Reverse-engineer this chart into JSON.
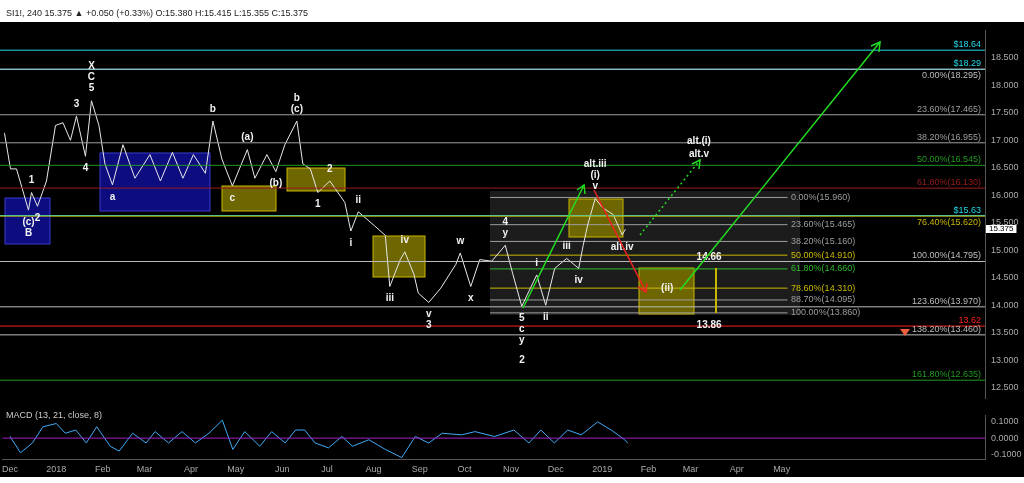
{
  "chart_data": [
    {
      "type": "line",
      "title": "SI1!, 240 15.375 ▲ +0.050 (+0.33%) O:15.380 H:15.415 L:15.355 C:15.375",
      "xlim": [
        "2017-11-26",
        "2019-09-14"
      ],
      "ylim": [
        12.3,
        19.0
      ],
      "yticks": [
        {
          "value": 12.5,
          "label": "12.500"
        },
        {
          "value": 13,
          "label": "13.000"
        },
        {
          "value": 13.5,
          "label": "13.500"
        },
        {
          "value": 14,
          "label": "14.000"
        },
        {
          "value": 14.5,
          "label": "14.500"
        },
        {
          "value": 15,
          "label": "15.000"
        },
        {
          "value": 15.5,
          "label": "15.500"
        },
        {
          "value": 16,
          "label": "16.000"
        },
        {
          "value": 16.5,
          "label": "16.500"
        },
        {
          "value": 17,
          "label": "17.000"
        },
        {
          "value": 17.5,
          "label": "17.500"
        },
        {
          "value": 18,
          "label": "18.000"
        },
        {
          "value": 18.5,
          "label": "18.500"
        }
      ],
      "tick_labels": "y",
      "grid": false,
      "legend": false,
      "marker": "none",
      "line_style": "solid",
      "series": [
        {
          "color": "#e8e8e8",
          "x": [
            "2017-11-29",
            "2017-12-03",
            "2017-12-07",
            "2017-12-15",
            "2017-12-17",
            "2017-12-21",
            "2017-12-27",
            "2018-01-02",
            "2018-01-07",
            "2018-01-12",
            "2018-01-16",
            "2018-01-22",
            "2018-01-26",
            "2018-01-31",
            "2018-02-04",
            "2018-02-09",
            "2018-02-16",
            "2018-02-24",
            "2018-03-06",
            "2018-03-13",
            "2018-03-21",
            "2018-03-28",
            "2018-04-04",
            "2018-04-12",
            "2018-04-17",
            "2018-04-23",
            "2018-04-30",
            "2018-05-10",
            "2018-05-15",
            "2018-05-23",
            "2018-05-29",
            "2018-06-04",
            "2018-06-12",
            "2018-06-16",
            "2018-06-21",
            "2018-06-26",
            "2018-07-04",
            "2018-07-14",
            "2018-07-18",
            "2018-07-23",
            "2018-08-03",
            "2018-08-10",
            "2018-08-13",
            "2018-08-20",
            "2018-08-23",
            "2018-08-29",
            "2018-09-01",
            "2018-09-08",
            "2018-09-16",
            "2018-09-26",
            "2018-09-29",
            "2018-10-06",
            "2018-10-12",
            "2018-10-20",
            "2018-10-29",
            "2018-11-03",
            "2018-11-09",
            "2018-11-19",
            "2018-11-25",
            "2018-12-01",
            "2018-12-09",
            "2018-12-17",
            "2018-12-20",
            "2018-12-23",
            "2018-12-28",
            "2019-01-02",
            "2019-01-09",
            "2019-01-15",
            "2019-01-17"
          ],
          "values": [
            17.13,
            16.48,
            16.48,
            15.73,
            16.05,
            15.8,
            16.26,
            17.27,
            17.32,
            17.0,
            17.44,
            16.71,
            17.72,
            17.27,
            16.57,
            16.19,
            16.92,
            16.31,
            16.74,
            16.26,
            16.78,
            16.31,
            16.74,
            16.4,
            17.35,
            16.66,
            16.17,
            16.83,
            16.31,
            16.74,
            16.43,
            16.92,
            17.35,
            16.57,
            16.48,
            16.05,
            16.26,
            15.87,
            15.35,
            15.7,
            15.44,
            15.27,
            14.34,
            14.83,
            14.97,
            14.57,
            14.22,
            14.05,
            14.31,
            14.74,
            14.95,
            14.34,
            14.83,
            14.8,
            15.09,
            14.57,
            13.98,
            14.55,
            14.0,
            14.67,
            14.85,
            14.67,
            15.09,
            15.46,
            15.94,
            15.77,
            15.65,
            15.28,
            15.375
          ]
        },
        {
          "name": "0.00%(15.960)",
          "color": "#9e9e9e",
          "x": [
            "2018-10-19",
            "2019-05-05"
          ],
          "values": [
            15.96,
            15.96
          ]
        },
        {
          "name": "23.60%(15.465)",
          "color": "#9e9e9e",
          "x": [
            "2018-10-19",
            "2019-05-05"
          ],
          "values": [
            15.465,
            15.465
          ]
        },
        {
          "name": "38.20%(15.160)",
          "color": "#9e9e9e",
          "x": [
            "2018-10-19",
            "2019-05-05"
          ],
          "values": [
            15.16,
            15.16
          ]
        },
        {
          "name": "50.00%(14.910)",
          "color": "#c9b800",
          "x": [
            "2018-10-19",
            "2019-05-05"
          ],
          "values": [
            14.91,
            14.91
          ]
        },
        {
          "name": "61.80%(14.660)",
          "color": "#2fb82f",
          "x": [
            "2018-10-19",
            "2019-05-05"
          ],
          "values": [
            14.66,
            14.66
          ]
        },
        {
          "name": "78.60%(14.310)",
          "color": "#c9b800",
          "x": [
            "2018-10-19",
            "2019-05-05"
          ],
          "values": [
            14.31,
            14.31
          ]
        },
        {
          "name": "88.70%(14.095)",
          "color": "#9e9e9e",
          "x": [
            "2018-10-19",
            "2019-05-05"
          ],
          "values": [
            14.095,
            14.095
          ]
        },
        {
          "name": "100.00%(13.860)",
          "color": "#9e9e9e",
          "x": [
            "2018-10-19",
            "2019-05-05"
          ],
          "values": [
            13.86,
            13.86
          ]
        }
      ],
      "ref_lines": [
        {
          "axis": "y",
          "value": 18.64,
          "label": "$18.64",
          "color": "#20d8e8"
        },
        {
          "axis": "y",
          "value": 18.29,
          "label": "$18.29",
          "color": "#20d8e8"
        },
        {
          "axis": "y",
          "value": 18.295,
          "label": "0.00%(18.295)",
          "color": "#bdbdbd"
        },
        {
          "axis": "y",
          "value": 17.465,
          "label": "23.60%(17.465)",
          "color": "#9e9e9e"
        },
        {
          "axis": "y",
          "value": 16.955,
          "label": "38.20%(16.955)",
          "color": "#9e9e9e"
        },
        {
          "axis": "y",
          "value": 16.545,
          "label": "50.00%(16.545)",
          "color": "#1f9a1f"
        },
        {
          "axis": "y",
          "value": 16.13,
          "label": "61.80%(16.130)",
          "color": "#9a1c1c"
        },
        {
          "axis": "y",
          "value": 15.63,
          "label": "$15.63",
          "color": "#20d8e8"
        },
        {
          "axis": "y",
          "value": 15.62,
          "label": "76.40%(15.620)",
          "color": "#c9b800"
        },
        {
          "axis": "y",
          "value": 14.795,
          "label": "100.00%(14.795)",
          "color": "#bdbdbd"
        },
        {
          "axis": "y",
          "value": 13.97,
          "label": "123.60%(13.970)",
          "color": "#bdbdbd"
        },
        {
          "axis": "y",
          "value": 13.62,
          "label": "13.62",
          "color": "#ff2020"
        },
        {
          "axis": "y",
          "value": 13.46,
          "label": "138.20%(13.460)",
          "color": "#bdbdbd"
        },
        {
          "axis": "y",
          "value": 12.635,
          "label": "161.80%(12.635)",
          "color": "#1f9a1f"
        }
      ],
      "annotations": [
        {
          "text": "5",
          "x": "2018-01-26",
          "y": 17.72
        },
        {
          "text": "C",
          "x": "2018-01-26",
          "y": 17.72
        },
        {
          "text": "X",
          "x": "2018-01-26",
          "y": 17.72
        },
        {
          "text": "3",
          "x": "2018-01-16",
          "y": 17.44
        },
        {
          "text": "4",
          "x": "2018-01-22",
          "y": 16.71
        },
        {
          "text": "1",
          "x": "2017-12-17",
          "y": 16.05
        },
        {
          "text": "2",
          "x": "2017-12-21",
          "y": 15.8
        },
        {
          "text": "(c)",
          "x": "2017-12-15",
          "y": 15.73
        },
        {
          "text": "B",
          "x": "2017-12-15",
          "y": 15.73
        },
        {
          "text": "a",
          "x": "2018-02-09",
          "y": 16.19
        },
        {
          "text": "b",
          "x": "2018-04-17",
          "y": 17.35
        },
        {
          "text": "(a)",
          "x": "2018-05-10",
          "y": 16.83
        },
        {
          "text": "c",
          "x": "2018-04-30",
          "y": 16.17
        },
        {
          "text": "(b)",
          "x": "2018-05-29",
          "y": 16.43
        },
        {
          "text": "(c)",
          "x": "2018-06-12",
          "y": 17.35
        },
        {
          "text": "b",
          "x": "2018-06-12",
          "y": 17.35
        },
        {
          "text": "2",
          "x": "2018-07-04",
          "y": 16.26
        },
        {
          "text": "1",
          "x": "2018-06-26",
          "y": 16.05
        },
        {
          "text": "ii",
          "x": "2018-07-23",
          "y": 15.7
        },
        {
          "text": "i",
          "x": "2018-07-18",
          "y": 15.35
        },
        {
          "text": "iii",
          "x": "2018-08-13",
          "y": 14.34
        },
        {
          "text": "iv",
          "x": "2018-08-23",
          "y": 14.97
        },
        {
          "text": "v",
          "x": "2018-09-08",
          "y": 14.05
        },
        {
          "text": "3",
          "x": "2018-09-08",
          "y": 14.05
        },
        {
          "text": "w",
          "x": "2018-09-29",
          "y": 14.95
        },
        {
          "text": "x",
          "x": "2018-10-06",
          "y": 14.34
        },
        {
          "text": "y",
          "x": "2018-10-29",
          "y": 15.09
        },
        {
          "text": "4",
          "x": "2018-10-29",
          "y": 15.09
        },
        {
          "text": "5",
          "x": "2018-11-09",
          "y": 13.98
        },
        {
          "text": "c",
          "x": "2018-11-09",
          "y": 13.98
        },
        {
          "text": "y",
          "x": "2018-11-09",
          "y": 13.98
        },
        {
          "text": "i",
          "x": "2018-11-19",
          "y": 14.55
        },
        {
          "text": "ii",
          "x": "2018-11-25",
          "y": 14.0
        },
        {
          "text": "iii",
          "x": "2018-12-09",
          "y": 14.85
        },
        {
          "text": "iv",
          "x": "2018-12-17",
          "y": 14.67
        },
        {
          "text": "v",
          "x": "2018-12-28",
          "y": 15.94
        },
        {
          "text": "(i)",
          "x": "2018-12-28",
          "y": 15.94
        },
        {
          "text": "alt.iii",
          "x": "2018-12-28",
          "y": 15.94
        },
        {
          "text": "alt.iv",
          "x": "2019-01-15",
          "y": 15.28
        },
        {
          "text": "14.66",
          "x": "2019-03-14",
          "y": 14.66
        },
        {
          "text": "13.86",
          "x": "2019-03-14",
          "y": 13.86
        },
        {
          "text": "(ii)",
          "x": "2019-02-14",
          "y": 14.095
        },
        "alt.(i)",
        "alt.v",
        "15.375",
        "2"
      ]
    },
    {
      "type": "line",
      "title": "MACD (13, 21, close, 8)",
      "xlim": [
        "2017-11-26",
        "2019-09-14"
      ],
      "xticks": [
        {
          "value": "2017-12-01",
          "label": "Dec"
        },
        {
          "value": "2018-01-01",
          "label": "2018"
        },
        {
          "value": "2018-02-01",
          "label": "Feb"
        },
        {
          "value": "2018-03-01",
          "label": "Mar"
        },
        {
          "value": "2018-04-01",
          "label": "Apr"
        },
        {
          "value": "2018-05-01",
          "label": "May"
        },
        {
          "value": "2018-06-01",
          "label": "Jun"
        },
        {
          "value": "2018-07-01",
          "label": "Jul"
        },
        {
          "value": "2018-08-01",
          "label": "Aug"
        },
        {
          "value": "2018-09-01",
          "label": "Sep"
        },
        {
          "value": "2018-10-01",
          "label": "Oct"
        },
        {
          "value": "2018-11-01",
          "label": "Nov"
        },
        {
          "value": "2018-12-01",
          "label": "Dec"
        },
        {
          "value": "2019-01-01",
          "label": "2019"
        },
        {
          "value": "2019-02-01",
          "label": "Feb"
        },
        {
          "value": "2019-03-01",
          "label": "Mar"
        },
        {
          "value": "2019-04-01",
          "label": "Apr"
        },
        {
          "value": "2019-05-01",
          "label": "May"
        }
      ],
      "ylim": [
        -0.13,
        0.14
      ],
      "yticks": [
        {
          "value": -0.1,
          "label": "-0.1000"
        },
        {
          "value": 0,
          "label": "0.0000"
        },
        {
          "value": 0.1,
          "label": "0.1000"
        }
      ],
      "grid": false,
      "legend": false,
      "marker": "none",
      "line_style": "solid",
      "series": [
        {
          "color": "#3fa9f5",
          "x": [
            "2017-12-01",
            "2017-12-08",
            "2017-12-16",
            "2017-12-23",
            "2018-01-01",
            "2018-01-07",
            "2018-01-14",
            "2018-01-21",
            "2018-01-28",
            "2018-02-06",
            "2018-02-12",
            "2018-02-21",
            "2018-03-02",
            "2018-03-08",
            "2018-03-17",
            "2018-03-26",
            "2018-04-04",
            "2018-04-13",
            "2018-04-22",
            "2018-04-29",
            "2018-05-07",
            "2018-05-17",
            "2018-05-25",
            "2018-06-03",
            "2018-06-10",
            "2018-06-16",
            "2018-06-23",
            "2018-07-02",
            "2018-07-11",
            "2018-07-18",
            "2018-07-29",
            "2018-08-09",
            "2018-08-20",
            "2018-08-29",
            "2018-09-07",
            "2018-09-16",
            "2018-09-29",
            "2018-10-08",
            "2018-10-21",
            "2018-11-03",
            "2018-11-13",
            "2018-11-21",
            "2018-11-30",
            "2018-12-09",
            "2018-12-18",
            "2018-12-29",
            "2019-01-07",
            "2019-01-16",
            "2019-01-18"
          ],
          "values": [
            0.01,
            -0.09,
            -0.03,
            0.07,
            0.09,
            0.03,
            0.05,
            -0.03,
            0.07,
            -0.05,
            -0.08,
            0.03,
            -0.03,
            0.04,
            -0.03,
            0.04,
            -0.03,
            0.03,
            0.11,
            -0.07,
            0.04,
            -0.05,
            0.04,
            -0.03,
            0.05,
            0.05,
            -0.03,
            -0.06,
            0.01,
            -0.05,
            -0.01,
            -0.07,
            -0.12,
            0.01,
            -0.03,
            0.03,
            0.02,
            0.04,
            0.01,
            0.05,
            -0.03,
            0.05,
            -0.03,
            0.05,
            0.02,
            0.1,
            0.05,
            -0.01,
            -0.03
          ]
        }
      ],
      "ref_lines": [
        {
          "axis": "y",
          "value": 0,
          "color": "#a020c0"
        }
      ]
    }
  ]
}
